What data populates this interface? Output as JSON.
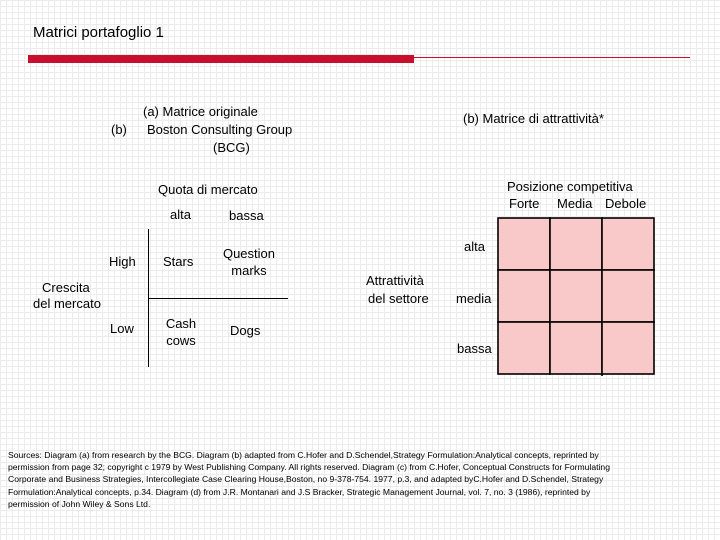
{
  "slide": {
    "title": "Matrici portafoglio 1"
  },
  "bcg": {
    "heading_a": "(a)    Matrice originale",
    "heading_b_tag": "(b)",
    "heading_b": "Boston Consulting Group",
    "heading_c": "(BCG)",
    "x_axis_label": "Quota di mercato",
    "col_high": "alta",
    "col_low": "bassa",
    "y_axis_label_1": "Crescita",
    "y_axis_label_2": "del mercato",
    "row_high": "High",
    "row_low": "Low",
    "cells": {
      "stars": "Stars",
      "question_marks_1": "Question",
      "question_marks_2": "marks",
      "cash_cows_1": "Cash",
      "cash_cows_2": "cows",
      "dogs": "Dogs"
    }
  },
  "attract": {
    "heading": "(b) Matrice di attrattività*",
    "x_axis_label": "Posizione competitiva",
    "cols": [
      "Forte",
      "Media",
      "Debole"
    ],
    "y_axis_label_1": "Attrattività",
    "y_axis_label_2": "del settore",
    "rows": [
      "alta",
      "media",
      "bassa"
    ],
    "cell_color": "#f9c8c8",
    "line_color": "#000000"
  },
  "sources": {
    "line_1": "Sources: Diagram (a) from research by the BCG. Diagram (b) adapted from C.Hofer and D.Schendel,Strategy Formulation:Analytical concepts, reprinted by",
    "line_2": "permission from page 32; copyright  c 1979 by West Publishing Company. All rights reserved. Diagram (c) from C.Hofer, Conceptual Constructs for Formulating",
    "line_3": "Corporate and Business Strategies, Intercollegiate Case Clearing House,Boston, no 9-378-754. 1977, p.3, and adapted byC.Hofer and D.Schendel, Strategy",
    "line_4": "Formulation:Analytical concepts, p.34. Diagram (d) from J.R. Montanari and J.S Bracker, Strategic Management Journal, vol. 7, no. 3 (1986), reprinted by",
    "line_5": " permission of John Wiley & Sons Ltd."
  }
}
